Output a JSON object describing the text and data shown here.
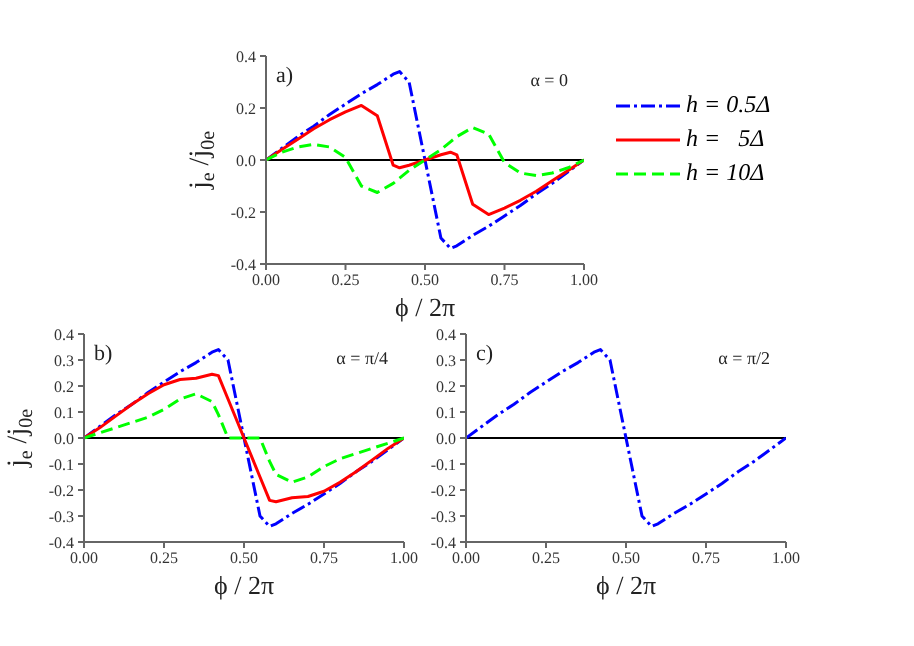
{
  "chart_data": [
    {
      "type": "line",
      "xlabel": "ϕ / 2π",
      "ylabel": "j$_{e}$ /j$_{0e}$",
      "annotations": [
        "a)",
        "α = 0"
      ],
      "legend": "right",
      "marker": "none",
      "grid": false,
      "x": [
        0,
        0.05,
        0.1,
        0.15,
        0.2,
        0.25,
        0.3,
        0.35,
        0.4,
        0.42,
        0.45,
        0.5,
        0.55,
        0.58,
        0.6,
        0.65,
        0.7,
        0.75,
        0.8,
        0.85,
        0.9,
        0.95,
        1
      ],
      "xlim": [
        0,
        1
      ],
      "xticks": [
        {
          "value": 0,
          "label": "0.00"
        },
        {
          "value": 0.25,
          "label": "0.25"
        },
        {
          "value": 0.5,
          "label": "0.50"
        },
        {
          "value": 0.75,
          "label": "0.75"
        },
        {
          "value": 1,
          "label": "1.00"
        }
      ],
      "ylim": [
        -0.4,
        0.4
      ],
      "yticks": [
        {
          "value": -0.4,
          "label": "-0.4"
        },
        {
          "value": -0.2,
          "label": "-0.2"
        },
        {
          "value": 0,
          "label": "0.0"
        },
        {
          "value": 0.2,
          "label": "0.2"
        },
        {
          "value": 0.4,
          "label": "0.4"
        }
      ],
      "ref_lines": [
        {
          "axis": "y",
          "value": 0,
          "color": "#000000"
        }
      ],
      "series": [
        {
          "name": "h = 0.5Δ",
          "color": "#0000ff",
          "line_style": "dashdot",
          "values": [
            0,
            0.045,
            0.09,
            0.13,
            0.175,
            0.215,
            0.255,
            0.29,
            0.33,
            0.34,
            0.3,
            0,
            -0.3,
            -0.34,
            -0.33,
            -0.29,
            -0.255,
            -0.215,
            -0.175,
            -0.13,
            -0.09,
            -0.045,
            0
          ]
        },
        {
          "name": "h =   5Δ",
          "color": "#ff0000",
          "line_style": "solid",
          "values": [
            0,
            0.04,
            0.08,
            0.12,
            0.155,
            0.185,
            0.21,
            0.17,
            -0.02,
            -0.03,
            -0.02,
            0,
            0.02,
            0.03,
            0.02,
            -0.17,
            -0.21,
            -0.185,
            -0.155,
            -0.12,
            -0.08,
            -0.04,
            0
          ]
        },
        {
          "name": "h = 10Δ",
          "color": "#00ff00",
          "line_style": "dashed",
          "values": [
            0,
            0.03,
            0.05,
            0.06,
            0.05,
            0.01,
            -0.1,
            -0.125,
            -0.09,
            -0.07,
            -0.04,
            0,
            0.04,
            0.07,
            0.09,
            0.125,
            0.1,
            -0.01,
            -0.05,
            -0.06,
            -0.05,
            -0.03,
            0
          ]
        }
      ]
    },
    {
      "type": "line",
      "xlabel": "ϕ / 2π",
      "ylabel": "j$_{e}$ /j$_{0e}$",
      "annotations": [
        "b)",
        "α = π/4"
      ],
      "marker": "none",
      "grid": false,
      "x": [
        0,
        0.05,
        0.1,
        0.15,
        0.2,
        0.25,
        0.3,
        0.35,
        0.4,
        0.42,
        0.45,
        0.5,
        0.55,
        0.58,
        0.6,
        0.65,
        0.7,
        0.75,
        0.8,
        0.85,
        0.9,
        0.95,
        1
      ],
      "xlim": [
        0,
        1
      ],
      "xticks": [
        {
          "value": 0,
          "label": "0.00"
        },
        {
          "value": 0.25,
          "label": "0.25"
        },
        {
          "value": 0.5,
          "label": "0.50"
        },
        {
          "value": 0.75,
          "label": "0.75"
        },
        {
          "value": 1,
          "label": "1.00"
        }
      ],
      "ylim": [
        -0.4,
        0.4
      ],
      "yticks": [
        {
          "value": -0.4,
          "label": "-0.4"
        },
        {
          "value": -0.3,
          "label": "-0.3"
        },
        {
          "value": -0.2,
          "label": "-0.2"
        },
        {
          "value": -0.1,
          "label": "-0.1"
        },
        {
          "value": 0,
          "label": "0.0"
        },
        {
          "value": 0.1,
          "label": "0.1"
        },
        {
          "value": 0.2,
          "label": "0.2"
        },
        {
          "value": 0.3,
          "label": "0.3"
        },
        {
          "value": 0.4,
          "label": "0.4"
        }
      ],
      "ref_lines": [
        {
          "axis": "y",
          "value": 0,
          "color": "#000000"
        }
      ],
      "series": [
        {
          "color": "#0000ff",
          "line_style": "dashdot",
          "values": [
            0,
            0.045,
            0.09,
            0.13,
            0.175,
            0.215,
            0.255,
            0.29,
            0.33,
            0.34,
            0.3,
            0,
            -0.3,
            -0.34,
            -0.33,
            -0.29,
            -0.255,
            -0.215,
            -0.175,
            -0.13,
            -0.09,
            -0.045,
            0
          ]
        },
        {
          "color": "#ff0000",
          "line_style": "solid",
          "values": [
            0,
            0.04,
            0.085,
            0.13,
            0.17,
            0.205,
            0.225,
            0.23,
            0.245,
            0.24,
            0.15,
            0,
            -0.15,
            -0.24,
            -0.245,
            -0.23,
            -0.225,
            -0.205,
            -0.17,
            -0.13,
            -0.085,
            -0.04,
            0
          ]
        },
        {
          "color": "#00ff00",
          "line_style": "dashed",
          "values": [
            0,
            0.02,
            0.04,
            0.06,
            0.08,
            0.11,
            0.15,
            0.17,
            0.14,
            0.09,
            0,
            0,
            0,
            -0.09,
            -0.14,
            -0.17,
            -0.15,
            -0.11,
            -0.08,
            -0.06,
            -0.04,
            -0.02,
            0
          ]
        }
      ]
    },
    {
      "type": "line",
      "xlabel": "ϕ / 2π",
      "annotations": [
        "c)",
        "α = π/2"
      ],
      "marker": "none",
      "grid": false,
      "x": [
        0,
        0.05,
        0.1,
        0.15,
        0.2,
        0.25,
        0.3,
        0.35,
        0.4,
        0.42,
        0.45,
        0.5,
        0.55,
        0.58,
        0.6,
        0.65,
        0.7,
        0.75,
        0.8,
        0.85,
        0.9,
        0.95,
        1
      ],
      "xlim": [
        0,
        1
      ],
      "xticks": [
        {
          "value": 0,
          "label": "0.00"
        },
        {
          "value": 0.25,
          "label": "0.25"
        },
        {
          "value": 0.5,
          "label": "0.50"
        },
        {
          "value": 0.75,
          "label": "0.75"
        },
        {
          "value": 1,
          "label": "1.00"
        }
      ],
      "ylim": [
        -0.4,
        0.4
      ],
      "yticks": [
        {
          "value": -0.4,
          "label": "-0.4"
        },
        {
          "value": -0.3,
          "label": "-0.3"
        },
        {
          "value": -0.2,
          "label": "-0.2"
        },
        {
          "value": -0.1,
          "label": "-0.1"
        },
        {
          "value": 0,
          "label": "0.0"
        },
        {
          "value": 0.1,
          "label": "0.1"
        },
        {
          "value": 0.2,
          "label": "0.2"
        },
        {
          "value": 0.3,
          "label": "0.3"
        },
        {
          "value": 0.4,
          "label": "0.4"
        }
      ],
      "ref_lines": [
        {
          "axis": "y",
          "value": 0,
          "color": "#000000"
        }
      ],
      "series": [
        {
          "color": "#0000ff",
          "line_style": "dashdot",
          "values": [
            0,
            0.045,
            0.09,
            0.13,
            0.175,
            0.215,
            0.255,
            0.29,
            0.33,
            0.34,
            0.3,
            0,
            -0.3,
            -0.34,
            -0.33,
            -0.29,
            -0.255,
            -0.215,
            -0.175,
            -0.13,
            -0.09,
            -0.045,
            0
          ]
        }
      ]
    }
  ]
}
